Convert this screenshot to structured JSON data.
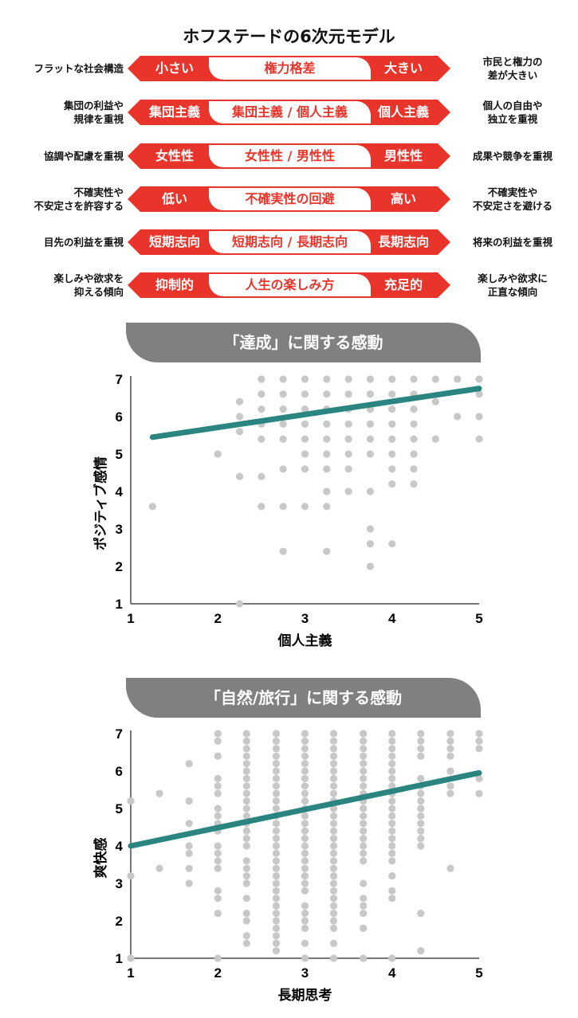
{
  "title": "ホフステードの6次元モデル",
  "dimensions": [
    {
      "left_desc": "フラットな社会構造",
      "low": "小さい",
      "name": "権力格差",
      "high": "大きい",
      "right_desc": "市民と権力の\n差が大きい"
    },
    {
      "left_desc": "集団の利益や\n規律を重視",
      "low": "集団主義",
      "name": "集団主義 / 個人主義",
      "high": "個人主義",
      "right_desc": "個人の自由や\n独立を重視"
    },
    {
      "left_desc": "協調や配慮を重視",
      "low": "女性性",
      "name": "女性性 / 男性性",
      "high": "男性性",
      "right_desc": "成果や競争を重視"
    },
    {
      "left_desc": "不確実性や\n不安定さを許容する",
      "low": "低い",
      "name": "不確実性の回避",
      "high": "高い",
      "right_desc": "不確実性や\n不安定さを避ける"
    },
    {
      "left_desc": "目先の利益を重視",
      "low": "短期志向",
      "name": "短期志向 / 長期志向",
      "high": "長期志向",
      "right_desc": "将来の利益を重視"
    },
    {
      "left_desc": "楽しみや欲求を\n抑える傾向",
      "low": "抑制的",
      "name": "人生の楽しみ方",
      "high": "充足的",
      "right_desc": "楽しみや欲求に\n正直な傾向"
    }
  ],
  "colors": {
    "red": "#e8342a",
    "header_gray": "#808080",
    "dot": "#c8c8c8",
    "trend": "#2a8580",
    "axis": "#777777"
  },
  "chart_data": [
    {
      "type": "scatter",
      "title": "「達成」に関する感動",
      "xlabel": "個人主義",
      "ylabel": "ポジティブ感情",
      "xlim": [
        1,
        5
      ],
      "ylim": [
        1,
        7
      ],
      "xticks": [
        "1",
        "2",
        "3",
        "4",
        "5"
      ],
      "yticks": [
        "1",
        "2",
        "3",
        "4",
        "5",
        "6",
        "7"
      ],
      "grid": false,
      "trendline": {
        "x": [
          1.25,
          5.0
        ],
        "y": [
          5.45,
          6.75
        ]
      },
      "points_by_x": [
        {
          "x": 1.25,
          "y": [
            3.6
          ]
        },
        {
          "x": 2.0,
          "y": [
            5.0
          ]
        },
        {
          "x": 2.25,
          "y": [
            6.4,
            6.0,
            5.6,
            4.4,
            1.0
          ]
        },
        {
          "x": 2.5,
          "y": [
            7.0,
            6.6,
            6.2,
            5.8,
            5.4,
            4.4,
            3.6
          ]
        },
        {
          "x": 2.75,
          "y": [
            7.0,
            6.6,
            6.2,
            5.8,
            5.4,
            4.6,
            3.6,
            2.4
          ]
        },
        {
          "x": 3.0,
          "y": [
            7.0,
            6.6,
            6.2,
            5.8,
            5.4,
            5.0,
            4.6,
            3.6
          ]
        },
        {
          "x": 3.25,
          "y": [
            7.0,
            6.6,
            6.2,
            5.8,
            5.4,
            5.0,
            4.6,
            4.0,
            3.6,
            2.4
          ]
        },
        {
          "x": 3.5,
          "y": [
            7.0,
            6.6,
            6.2,
            5.8,
            5.4,
            5.0,
            4.6,
            4.0
          ]
        },
        {
          "x": 3.75,
          "y": [
            7.0,
            6.6,
            6.2,
            5.8,
            5.4,
            5.0,
            4.0,
            3.0,
            2.6,
            2.0
          ]
        },
        {
          "x": 4.0,
          "y": [
            7.0,
            6.6,
            6.2,
            5.8,
            5.4,
            5.0,
            4.6,
            4.2,
            2.6
          ]
        },
        {
          "x": 4.25,
          "y": [
            7.0,
            6.6,
            6.2,
            5.8,
            5.4,
            5.0,
            4.6,
            4.2
          ]
        },
        {
          "x": 4.5,
          "y": [
            7.0,
            6.4,
            5.4
          ]
        },
        {
          "x": 4.75,
          "y": [
            7.0,
            6.0
          ]
        },
        {
          "x": 5.0,
          "y": [
            7.0,
            6.6,
            6.0,
            5.4
          ]
        }
      ]
    },
    {
      "type": "scatter",
      "title": "「自然/旅行」に関する感動",
      "xlabel": "長期思考",
      "ylabel": "爽快感",
      "xlim": [
        1,
        5
      ],
      "ylim": [
        1,
        7
      ],
      "xticks": [
        "1",
        "2",
        "3",
        "4",
        "5"
      ],
      "yticks": [
        "1",
        "2",
        "3",
        "4",
        "5",
        "6",
        "7"
      ],
      "grid": false,
      "trendline": {
        "x": [
          1.0,
          5.0
        ],
        "y": [
          4.0,
          5.95
        ]
      },
      "run_step": 0.2,
      "points_by_x": [
        {
          "x": 1.0,
          "y": [
            5.2,
            3.2,
            1.0
          ]
        },
        {
          "x": 1.33,
          "y": [
            5.4,
            3.4
          ]
        },
        {
          "x": 1.67,
          "y": [
            6.2,
            5.2,
            4.6,
            4.0,
            3.8,
            3.4,
            3.0
          ]
        },
        {
          "x": 2.0,
          "y": [
            7.0,
            6.8,
            6.4,
            5.8,
            5.6,
            5.4,
            5.0,
            4.8,
            4.6,
            4.4,
            4.0,
            3.8,
            3.6,
            3.4,
            2.8,
            2.6,
            2.2,
            1.0
          ]
        },
        {
          "x": 2.33,
          "runs": [
            [
              7.0,
              4.0
            ]
          ],
          "y": [
            3.6,
            3.4,
            3.2,
            3.0,
            2.6,
            2.2,
            2.0,
            1.6,
            1.4
          ]
        },
        {
          "x": 2.67,
          "runs": [
            [
              7.0,
              1.2
            ]
          ],
          "y": []
        },
        {
          "x": 3.0,
          "runs": [
            [
              7.0,
              2.8
            ]
          ],
          "y": [
            2.4,
            2.2,
            2.0,
            1.8,
            1.4,
            1.0
          ]
        },
        {
          "x": 3.33,
          "runs": [
            [
              7.0,
              1.8
            ]
          ],
          "y": [
            1.4,
            1.0
          ]
        },
        {
          "x": 3.67,
          "runs": [
            [
              7.0,
              3.6
            ]
          ],
          "y": [
            3.0,
            2.6,
            2.4,
            2.2,
            1.8,
            1.0
          ]
        },
        {
          "x": 4.0,
          "runs": [
            [
              7.0,
              3.6
            ]
          ],
          "y": [
            3.2,
            2.8,
            2.6,
            1.0
          ]
        },
        {
          "x": 4.33,
          "runs": [
            [
              5.8,
              4.0
            ]
          ],
          "y": [
            7.0,
            6.8,
            6.6,
            6.4,
            2.2,
            1.2
          ]
        },
        {
          "x": 4.67,
          "y": [
            7.0,
            6.8,
            6.6,
            6.4,
            6.0,
            5.6,
            5.4,
            3.4
          ]
        },
        {
          "x": 5.0,
          "y": [
            7.0,
            6.8,
            6.6,
            5.8,
            5.4
          ]
        }
      ]
    }
  ]
}
